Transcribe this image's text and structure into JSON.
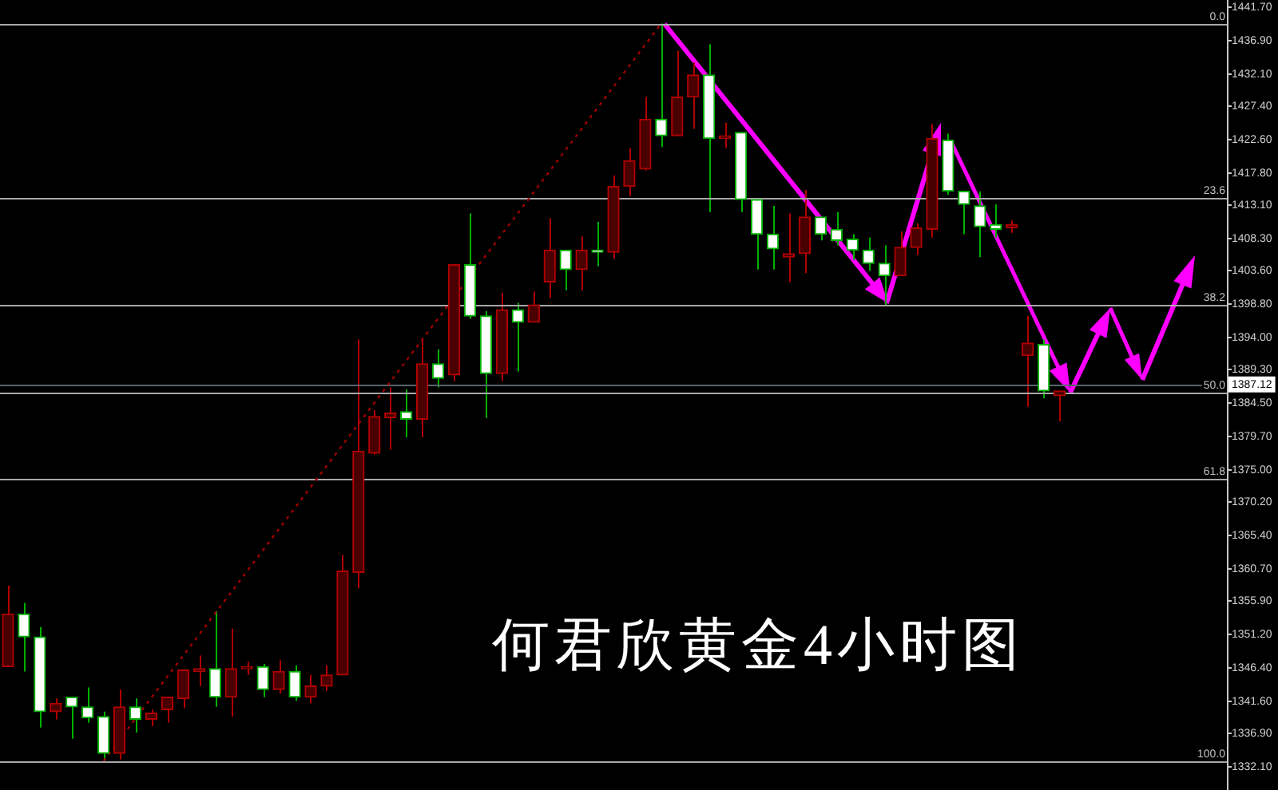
{
  "chart_data": {
    "type": "candlestick",
    "title": "何君欣黄金4小时图",
    "tick_labels": "y",
    "categories": [
      null,
      null,
      null,
      null,
      null,
      null,
      null,
      null,
      null,
      null,
      null,
      null,
      null,
      null,
      null,
      null,
      null,
      null,
      null,
      null,
      null,
      null,
      null,
      null,
      null,
      null,
      null,
      null,
      null,
      null,
      null,
      null,
      null,
      null,
      null,
      null,
      null,
      null,
      null,
      null,
      null,
      null,
      null,
      null,
      null,
      null,
      null,
      null,
      null,
      null,
      null,
      null,
      null,
      null,
      null,
      null,
      null,
      null,
      null,
      null,
      null,
      null,
      null,
      null,
      null,
      null,
      null,
      null,
      null,
      null,
      null,
      null,
      null,
      null,
      null,
      null,
      null
    ],
    "ylim": [
      1328.6,
      1442.6
    ],
    "yticks": [
      {
        "value": 1441.7,
        "label": "1441.70"
      },
      {
        "value": 1436.9,
        "label": "1436.90"
      },
      {
        "value": 1432.1,
        "label": "1432.10"
      },
      {
        "value": 1427.4,
        "label": "1427.40"
      },
      {
        "value": 1422.6,
        "label": "1422.60"
      },
      {
        "value": 1417.8,
        "label": "1417.80"
      },
      {
        "value": 1413.1,
        "label": "1413.10"
      },
      {
        "value": 1408.3,
        "label": "1408.30"
      },
      {
        "value": 1403.6,
        "label": "1403.60"
      },
      {
        "value": 1398.8,
        "label": "1398.80"
      },
      {
        "value": 1394,
        "label": "1394.00"
      },
      {
        "value": 1389.3,
        "label": "1389.30"
      },
      {
        "value": 1384.5,
        "label": "1384.50"
      },
      {
        "value": 1379.7,
        "label": "1379.70"
      },
      {
        "value": 1375,
        "label": "1375.00"
      },
      {
        "value": 1370.2,
        "label": "1370.20"
      },
      {
        "value": 1365.4,
        "label": "1365.40"
      },
      {
        "value": 1360.7,
        "label": "1360.70"
      },
      {
        "value": 1355.9,
        "label": "1355.90"
      },
      {
        "value": 1351.2,
        "label": "1351.20"
      },
      {
        "value": 1346.4,
        "label": "1346.40"
      },
      {
        "value": 1341.6,
        "label": "1341.60"
      },
      {
        "value": 1336.9,
        "label": "1336.90"
      },
      {
        "value": 1332.1,
        "label": "1332.10"
      }
    ],
    "ohlc": [
      [
        1346.4,
        1358.1,
        1346.4,
        1354.0
      ],
      [
        1354.0,
        1355.6,
        1345.7,
        1350.7
      ],
      [
        1350.7,
        1352.1,
        1337.6,
        1339.9
      ],
      [
        1339.9,
        1341.8,
        1338.8,
        1341.1
      ],
      [
        1342.0,
        1342.0,
        1336.0,
        1340.6
      ],
      [
        1340.6,
        1343.4,
        1338.3,
        1339.0
      ],
      [
        1339.2,
        1339.9,
        1332.8,
        1333.9
      ],
      [
        1333.9,
        1343.1,
        1333.0,
        1340.6
      ],
      [
        1340.6,
        1341.8,
        1336.9,
        1338.8
      ],
      [
        1338.8,
        1340.2,
        1337.8,
        1339.7
      ],
      [
        1340.2,
        1342.0,
        1338.3,
        1342.0
      ],
      [
        1341.8,
        1345.9,
        1340.4,
        1345.9
      ],
      [
        1345.7,
        1348.0,
        1343.6,
        1346.1
      ],
      [
        1346.1,
        1354.4,
        1340.6,
        1342.0
      ],
      [
        1342.0,
        1351.9,
        1339.2,
        1346.1
      ],
      [
        1346.1,
        1347.1,
        1345.2,
        1346.4
      ],
      [
        1346.4,
        1346.8,
        1342.0,
        1343.1
      ],
      [
        1343.1,
        1347.3,
        1342.5,
        1345.7
      ],
      [
        1345.7,
        1346.6,
        1341.5,
        1342.0
      ],
      [
        1342.0,
        1345.2,
        1341.1,
        1343.6
      ],
      [
        1343.6,
        1346.6,
        1342.9,
        1345.2
      ],
      [
        1345.2,
        1362.5,
        1345.2,
        1360.2
      ],
      [
        1360.0,
        1393.6,
        1357.7,
        1377.5
      ],
      [
        1377.2,
        1383.4,
        1377.0,
        1382.5
      ],
      [
        1382.3,
        1386.7,
        1377.7,
        1383.0
      ],
      [
        1383.2,
        1386.4,
        1379.5,
        1382.1
      ],
      [
        1382.1,
        1393.6,
        1379.5,
        1390.1
      ],
      [
        1390.1,
        1392.2,
        1386.7,
        1388.0
      ],
      [
        1388.5,
        1404.4,
        1387.6,
        1404.4
      ],
      [
        1404.4,
        1411.8,
        1396.6,
        1397.0
      ],
      [
        1397.0,
        1397.7,
        1382.3,
        1388.7
      ],
      [
        1388.7,
        1400.3,
        1387.6,
        1397.9
      ],
      [
        1397.9,
        1398.9,
        1389.0,
        1396.1
      ],
      [
        1396.1,
        1400.5,
        1396.1,
        1398.6
      ],
      [
        1401.9,
        1411.1,
        1399.6,
        1406.5
      ],
      [
        1406.5,
        1406.5,
        1400.7,
        1403.7
      ],
      [
        1403.7,
        1408.5,
        1400.7,
        1406.5
      ],
      [
        1406.5,
        1410.6,
        1404.2,
        1406.2
      ],
      [
        1406.2,
        1417.3,
        1405.3,
        1415.7
      ],
      [
        1415.7,
        1421.2,
        1414.3,
        1419.4
      ],
      [
        1418.2,
        1428.6,
        1418.0,
        1425.4
      ],
      [
        1425.4,
        1439.2,
        1421.4,
        1423.0
      ],
      [
        1423.0,
        1435.3,
        1423.0,
        1428.6
      ],
      [
        1428.6,
        1433.6,
        1424.0,
        1431.8
      ],
      [
        1431.8,
        1436.2,
        1412.0,
        1422.6
      ],
      [
        1422.6,
        1424.9,
        1421.2,
        1423.0
      ],
      [
        1423.5,
        1423.5,
        1412.0,
        1413.8
      ],
      [
        1413.8,
        1413.8,
        1403.7,
        1408.8
      ],
      [
        1408.8,
        1412.9,
        1403.7,
        1406.7
      ],
      [
        1405.5,
        1411.8,
        1401.9,
        1406.0
      ],
      [
        1406.0,
        1415.2,
        1403.2,
        1411.3
      ],
      [
        1411.3,
        1411.3,
        1407.9,
        1408.8
      ],
      [
        1409.5,
        1412.0,
        1407.2,
        1407.9
      ],
      [
        1408.1,
        1408.8,
        1405.1,
        1406.5
      ],
      [
        1406.5,
        1408.3,
        1403.5,
        1404.6
      ],
      [
        1404.6,
        1407.2,
        1398.4,
        1402.8
      ],
      [
        1402.8,
        1409.2,
        1402.8,
        1406.9
      ],
      [
        1406.9,
        1410.4,
        1405.8,
        1409.7
      ],
      [
        1409.5,
        1424.7,
        1408.3,
        1422.6
      ],
      [
        1422.4,
        1423.3,
        1414.5,
        1415.0
      ],
      [
        1415.0,
        1415.0,
        1408.8,
        1413.1
      ],
      [
        1412.9,
        1415.0,
        1405.5,
        1409.9
      ],
      [
        1410.2,
        1413.1,
        1408.3,
        1409.5
      ],
      [
        1409.7,
        1410.8,
        1409.0,
        1410.2
      ],
      [
        1391.3,
        1397.0,
        1383.9,
        1393.1
      ],
      [
        1392.9,
        1393.6,
        1385.1,
        1386.2
      ],
      [
        1385.5,
        1386.2,
        1381.8,
        1386.2
      ],
      null,
      null,
      null,
      null,
      null,
      null,
      null,
      null,
      null,
      null
    ],
    "colors": [
      "#b00000",
      "#00b000",
      "#00b000",
      "#b00000",
      "#00b000",
      "#00b000",
      "#00b000",
      "#b00000",
      "#00b000",
      "#b00000",
      "#b00000",
      "#b00000",
      "#b00000",
      "#00b000",
      "#b00000",
      "#b00000",
      "#00b000",
      "#b00000",
      "#00b000",
      "#b00000",
      "#b00000",
      "#b00000",
      "#b00000",
      "#b00000",
      "#b00000",
      "#00b000",
      "#b00000",
      "#00b000",
      "#b00000",
      "#00b000",
      "#00b000",
      "#b00000",
      "#00b000",
      "#b00000",
      "#b00000",
      "#00b000",
      "#b00000",
      "#00b000",
      "#b00000",
      "#b00000",
      "#b00000",
      "#00b000",
      "#b00000",
      "#b00000",
      "#00b000",
      "#b00000",
      "#00b000",
      "#00b000",
      "#00b000",
      "#b00000",
      "#b00000",
      "#00b000",
      "#00b000",
      "#00b000",
      "#00b000",
      "#00b000",
      "#b00000",
      "#b00000",
      "#b00000",
      "#00b000",
      "#00b000",
      "#00b000",
      "#00b000",
      "#b00000",
      "#b00000",
      "#00b000",
      "#b00000",
      null,
      null,
      null,
      null,
      null,
      null,
      null,
      null,
      null,
      null
    ],
    "series": [
      {
        "type": "line",
        "color": "#a00000",
        "line_style": "dotted",
        "marker": "none",
        "values": [
          null,
          null,
          null,
          null,
          null,
          null,
          1332.8,
          null,
          null,
          null,
          null,
          null,
          null,
          null,
          null,
          null,
          null,
          null,
          null,
          null,
          null,
          null,
          null,
          null,
          null,
          null,
          null,
          null,
          null,
          null,
          null,
          null,
          null,
          null,
          null,
          null,
          null,
          null,
          null,
          null,
          null,
          1439.2,
          null,
          null,
          null,
          null,
          null,
          null,
          null,
          null,
          null,
          null,
          null,
          null,
          null,
          null,
          null,
          null,
          null,
          null,
          null,
          null,
          null,
          null,
          null,
          null,
          null,
          null,
          null,
          null,
          null,
          null,
          null,
          null,
          null,
          null,
          null
        ]
      }
    ],
    "ref_lines": [
      {
        "axis": "y",
        "value": 1439.2,
        "color": "#a8a8a8"
      },
      {
        "axis": "y",
        "value": 1414.1,
        "color": "#a8a8a8"
      },
      {
        "axis": "y",
        "value": 1398.5,
        "color": "#a8a8a8"
      },
      {
        "axis": "y",
        "value": 1386.0,
        "color": "#a8a8a8"
      },
      {
        "axis": "y",
        "value": 1373.4,
        "color": "#a8a8a8"
      },
      {
        "axis": "y",
        "value": 1332.8,
        "color": "#a8a8a8"
      },
      {
        "axis": "y",
        "value": 1387.12,
        "label": "1387.12",
        "color": "#5a6470"
      }
    ],
    "annotations": [
      {
        "text": "0.0",
        "y": 1439.2
      },
      {
        "text": "23.6",
        "y": 1414.1
      },
      {
        "text": "38.2",
        "y": 1398.5
      },
      {
        "text": "50.0",
        "y": 1386.0
      },
      {
        "text": "61.8",
        "y": 1373.4
      },
      {
        "text": "100.0",
        "y": 1332.8
      }
    ]
  }
}
